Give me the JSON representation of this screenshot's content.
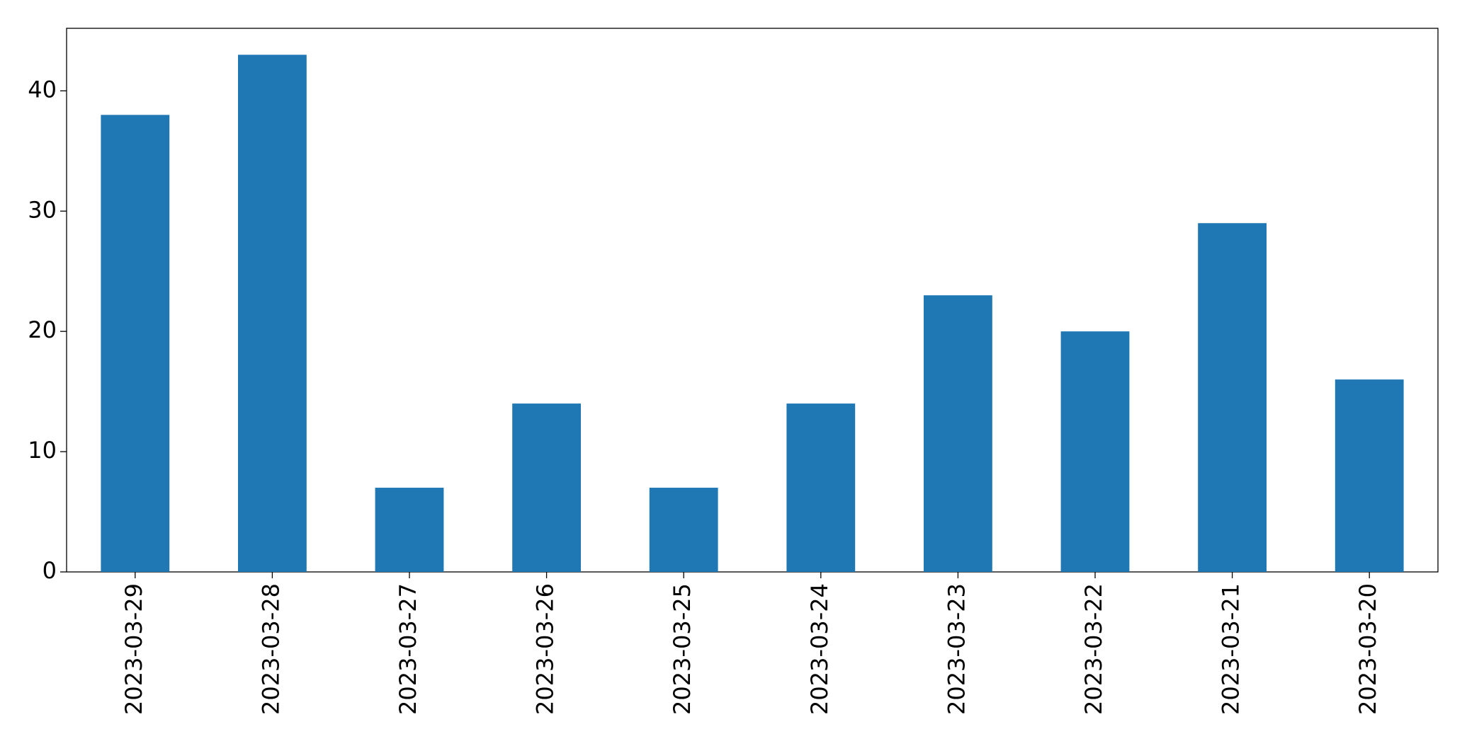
{
  "chart_data": {
    "type": "bar",
    "categories": [
      "2023-03-29",
      "2023-03-28",
      "2023-03-27",
      "2023-03-26",
      "2023-03-25",
      "2023-03-24",
      "2023-03-23",
      "2023-03-22",
      "2023-03-21",
      "2023-03-20"
    ],
    "values": [
      38,
      43,
      7,
      14,
      7,
      14,
      23,
      20,
      29,
      16
    ],
    "color": "#1f77b4",
    "ylim": [
      0,
      45.2
    ],
    "yticks": [
      0,
      10,
      20,
      30,
      40
    ],
    "grid": false
  }
}
